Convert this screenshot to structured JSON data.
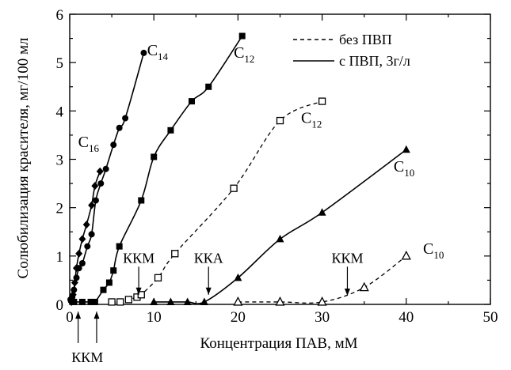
{
  "chart_data": {
    "type": "scatter",
    "title": "",
    "xlabel": "Концентрация ПАВ, мМ",
    "ylabel": "Солюбилизация красителя, мг/100 мл",
    "xlim": [
      0,
      50
    ],
    "ylim": [
      0,
      6
    ],
    "x_ticks": [
      0,
      10,
      20,
      30,
      40,
      50
    ],
    "y_ticks": [
      0,
      1,
      2,
      3,
      4,
      5,
      6
    ],
    "grid": false,
    "legend": {
      "placement": "top-right",
      "entries": [
        {
          "label": "без ПВП",
          "style": "dashed"
        },
        {
          "label": "с ПВП, 3г/л",
          "style": "solid"
        }
      ]
    },
    "series": [
      {
        "label": "C16",
        "label_main": "C",
        "label_sub": "16",
        "marker": "diamond",
        "line": "solid",
        "pvp": true,
        "points": [
          [
            0.2,
            0.05
          ],
          [
            0.4,
            0.2
          ],
          [
            0.6,
            0.45
          ],
          [
            0.8,
            0.75
          ],
          [
            1.1,
            1.05
          ],
          [
            1.5,
            1.35
          ],
          [
            2.0,
            1.65
          ],
          [
            2.6,
            2.05
          ],
          [
            3.0,
            2.45
          ],
          [
            3.6,
            2.75
          ]
        ],
        "label_at": [
          1.0,
          3.25
        ]
      },
      {
        "label": "C14",
        "label_main": "C",
        "label_sub": "14",
        "marker": "circle",
        "line": "solid",
        "pvp": true,
        "points": [
          [
            0.1,
            0.1
          ],
          [
            0.3,
            0.15
          ],
          [
            0.5,
            0.3
          ],
          [
            0.8,
            0.55
          ],
          [
            1.1,
            0.75
          ],
          [
            1.5,
            0.85
          ],
          [
            2.1,
            1.2
          ],
          [
            2.6,
            1.45
          ],
          [
            3.1,
            2.15
          ],
          [
            3.7,
            2.5
          ],
          [
            4.3,
            2.8
          ],
          [
            5.2,
            3.3
          ],
          [
            5.9,
            3.65
          ],
          [
            6.6,
            3.85
          ],
          [
            8.8,
            5.2
          ]
        ],
        "label_at": [
          9.2,
          5.15
        ]
      },
      {
        "label": "C12",
        "label_main": "C",
        "label_sub": "12",
        "marker": "square",
        "line": "solid",
        "pvp": true,
        "points": [
          [
            0.5,
            0.05
          ],
          [
            1.5,
            0.05
          ],
          [
            2.5,
            0.05
          ],
          [
            3.0,
            0.05
          ],
          [
            4.0,
            0.3
          ],
          [
            4.7,
            0.45
          ],
          [
            5.2,
            0.7
          ],
          [
            5.9,
            1.2
          ],
          [
            8.5,
            2.15
          ],
          [
            10.0,
            3.05
          ],
          [
            12.0,
            3.6
          ],
          [
            14.5,
            4.2
          ],
          [
            16.5,
            4.5
          ],
          [
            20.5,
            5.55
          ]
        ],
        "label_at": [
          19.5,
          5.1
        ]
      },
      {
        "label": "C12",
        "label_main": "C",
        "label_sub": "12",
        "marker": "square-open",
        "line": "dashed",
        "pvp": false,
        "points": [
          [
            5.0,
            0.05
          ],
          [
            6.0,
            0.05
          ],
          [
            7.0,
            0.1
          ],
          [
            8.0,
            0.15
          ],
          [
            8.5,
            0.2
          ],
          [
            10.5,
            0.55
          ],
          [
            12.5,
            1.05
          ],
          [
            19.5,
            2.4
          ],
          [
            25.0,
            3.8
          ],
          [
            30.0,
            4.2
          ]
        ],
        "label_at": [
          27.5,
          3.75
        ]
      },
      {
        "label": "C10",
        "label_main": "C",
        "label_sub": "10",
        "marker": "triangle",
        "line": "solid",
        "pvp": true,
        "points": [
          [
            10.0,
            0.05
          ],
          [
            12.0,
            0.05
          ],
          [
            14.0,
            0.05
          ],
          [
            16.0,
            0.05
          ],
          [
            20.0,
            0.55
          ],
          [
            25.0,
            1.35
          ],
          [
            30.0,
            1.9
          ],
          [
            40.0,
            3.2
          ]
        ],
        "label_at": [
          38.5,
          2.75
        ]
      },
      {
        "label": "C10",
        "label_main": "C",
        "label_sub": "10",
        "marker": "triangle-open",
        "line": "dashed",
        "pvp": false,
        "points": [
          [
            20.0,
            0.05
          ],
          [
            25.0,
            0.05
          ],
          [
            30.0,
            0.05
          ],
          [
            35.0,
            0.35
          ],
          [
            40.0,
            1.0
          ]
        ],
        "label_at": [
          42.0,
          1.05
        ]
      }
    ],
    "annotations": [
      {
        "text": "ККМ",
        "x": 8.2,
        "y_from": 0.78,
        "y_to": 0.2
      },
      {
        "text": "ККА",
        "x": 16.5,
        "y_from": 0.78,
        "y_to": 0.2
      },
      {
        "text": "ККМ",
        "x": 33.0,
        "y_from": 0.78,
        "y_to": 0.18
      },
      {
        "text": "ККМ",
        "x": 1.0,
        "y_from": -0.8,
        "y_to": -0.15,
        "text_below": true
      },
      {
        "text": "",
        "x": 3.2,
        "y_from": -0.8,
        "y_to": -0.15
      }
    ]
  }
}
